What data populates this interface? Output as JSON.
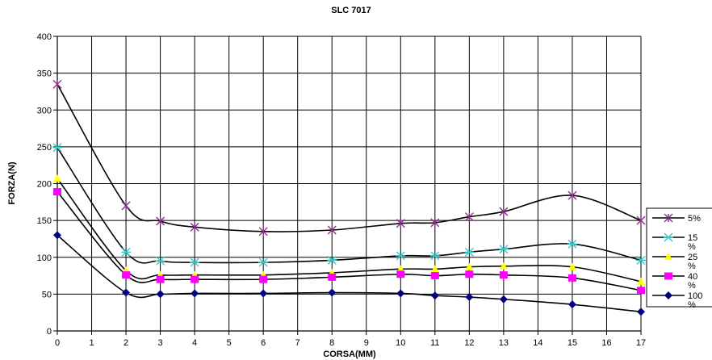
{
  "chart_data": {
    "type": "line",
    "title": "SLC 7017",
    "xlabel": "CORSA(MM)",
    "ylabel": "FORZA(N)",
    "x": [
      0,
      2,
      3,
      4,
      6,
      8,
      10,
      11,
      12,
      13,
      15,
      17
    ],
    "xlim": [
      0,
      17
    ],
    "ylim": [
      0,
      400
    ],
    "x_ticks": [
      0,
      1,
      2,
      3,
      4,
      5,
      6,
      7,
      8,
      9,
      10,
      11,
      12,
      13,
      14,
      15,
      16,
      17
    ],
    "y_ticks": [
      0,
      50,
      100,
      150,
      200,
      250,
      300,
      350,
      400
    ],
    "grid": true,
    "legend_position": "right",
    "series": [
      {
        "name": "5%",
        "color": "#000000",
        "marker": "star",
        "marker_color": "#8b2d8b",
        "values": [
          335,
          170,
          149,
          141,
          135,
          137,
          146,
          147,
          155,
          162,
          184,
          150
        ]
      },
      {
        "name": "15\n%",
        "color": "#000000",
        "marker": "asterisk",
        "marker_color": "#33cccc",
        "values": [
          249,
          107,
          95,
          93,
          93,
          96,
          102,
          102,
          107,
          111,
          118,
          96
        ]
      },
      {
        "name": "25\n%",
        "color": "#000000",
        "marker": "triangle",
        "marker_color": "#ffff00",
        "values": [
          207,
          82,
          76,
          76,
          76,
          79,
          84,
          84,
          87,
          88,
          87,
          67
        ]
      },
      {
        "name": "40\n%",
        "color": "#000000",
        "marker": "square",
        "marker_color": "#ff00ff",
        "values": [
          189,
          76,
          70,
          70,
          70,
          73,
          77,
          75,
          77,
          76,
          72,
          55
        ]
      },
      {
        "name": "100\n%",
        "color": "#000000",
        "marker": "diamond",
        "marker_color": "#000080",
        "values": [
          130,
          52,
          50,
          51,
          51,
          52,
          51,
          48,
          46,
          43,
          36,
          26
        ]
      }
    ]
  }
}
